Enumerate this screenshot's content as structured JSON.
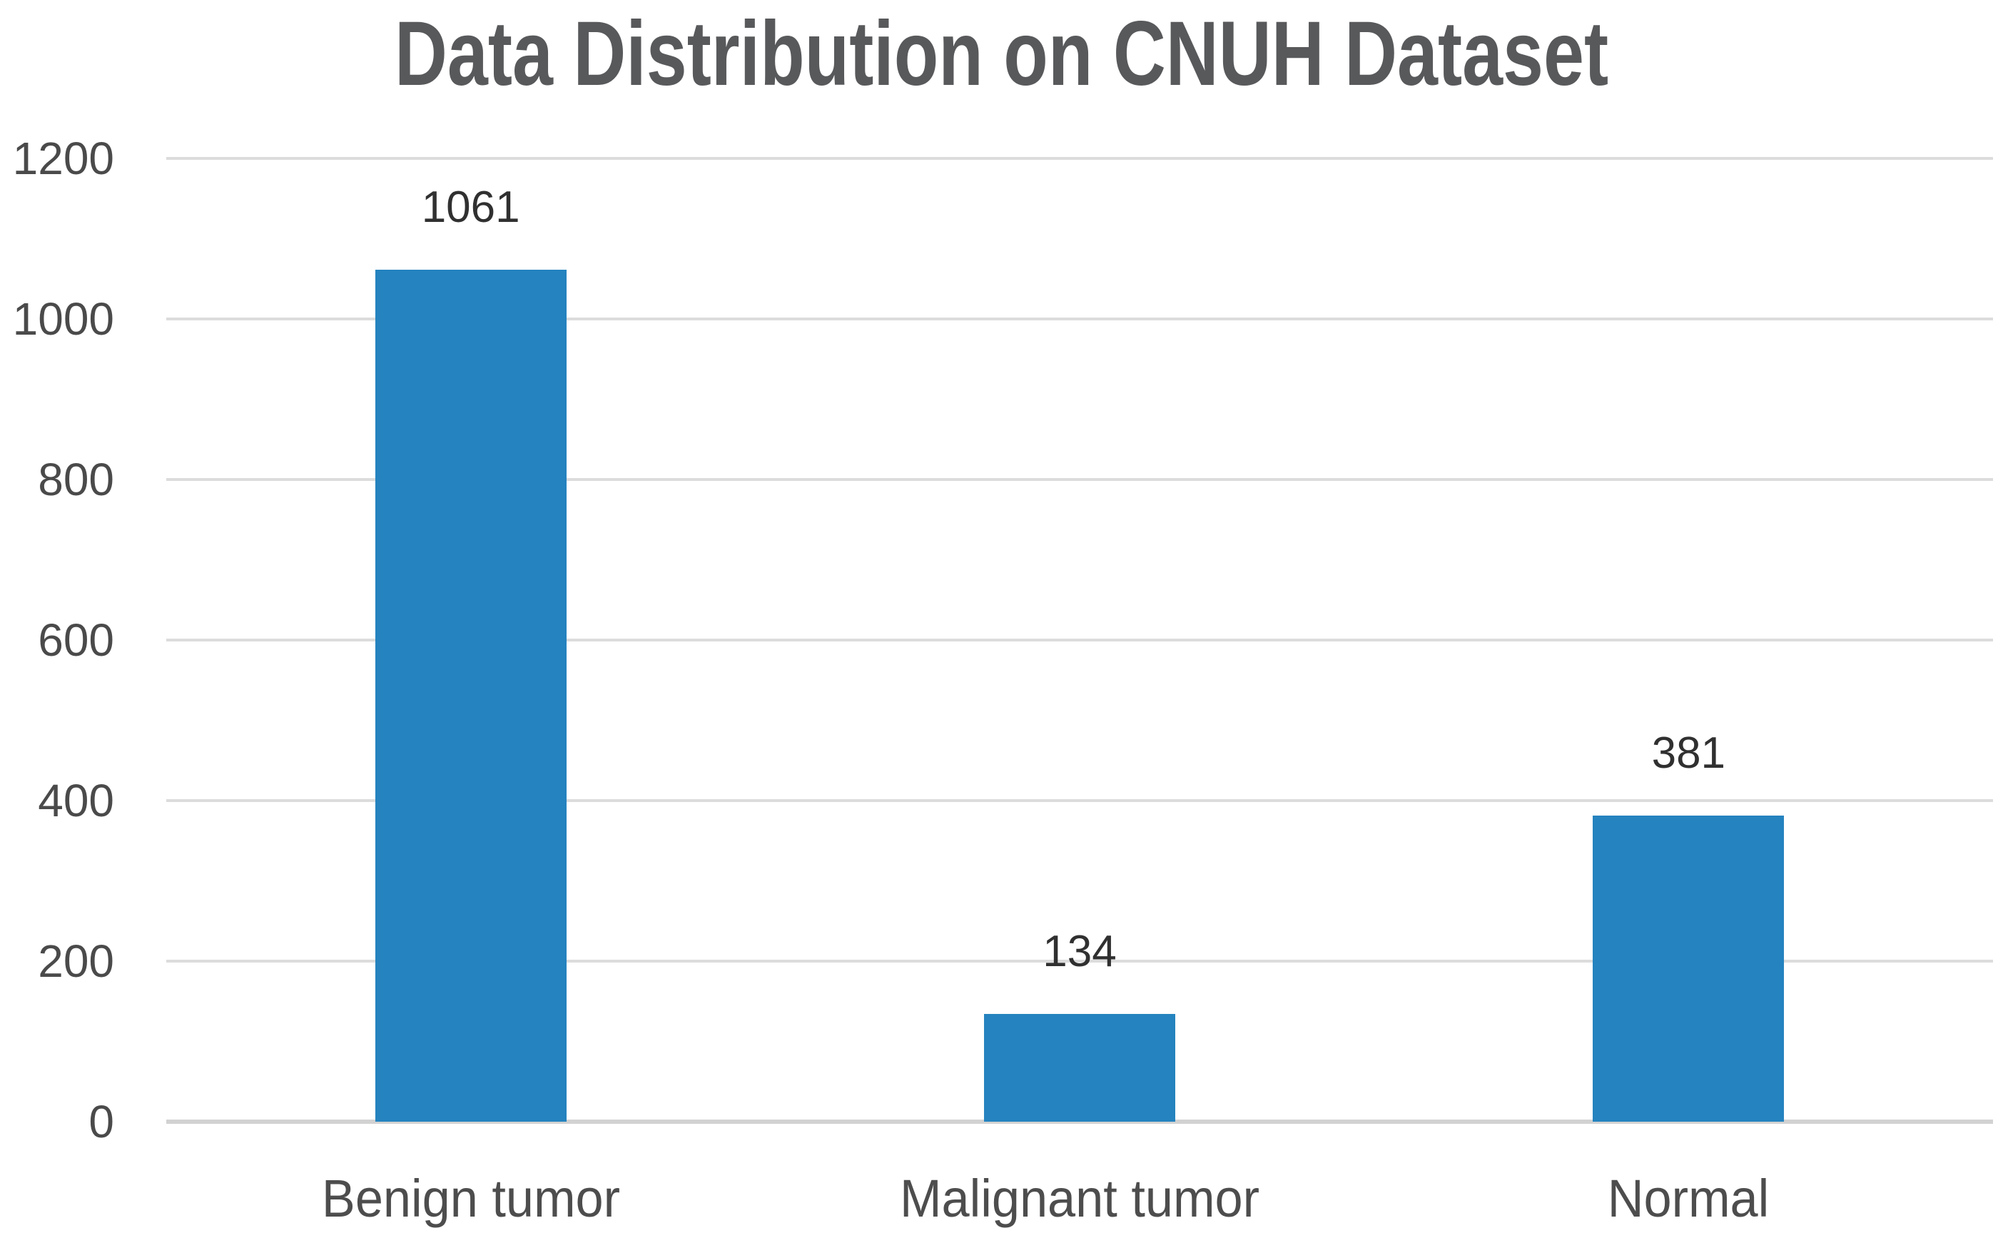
{
  "chart_data": {
    "type": "bar",
    "title": "Data Distribution on CNUH Dataset",
    "categories": [
      "Benign tumor",
      "Malignant tumor",
      "Normal"
    ],
    "values": [
      1061,
      134,
      381
    ],
    "data_labels": [
      "1061",
      "134",
      "381"
    ],
    "series_count": 1,
    "yticks": [
      0,
      200,
      400,
      600,
      800,
      1000,
      1200
    ],
    "ylim": [
      0,
      1200
    ],
    "xlabel": "",
    "ylabel": "",
    "grid": "horizontal",
    "legend": "none",
    "colors": {
      "bar": "#2583bf",
      "gridline": "#dcdcdc",
      "axis_line": "#d2d2d2",
      "title_text": "#58595b",
      "tick_text": "#4a4a4a",
      "value_text": "#303030",
      "background": "#ffffff"
    }
  }
}
